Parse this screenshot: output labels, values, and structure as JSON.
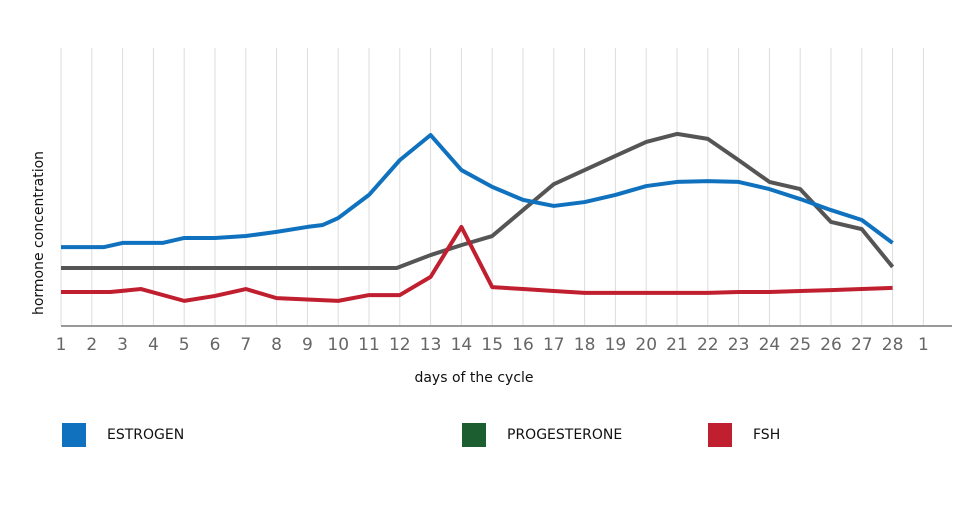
{
  "chart_data": {
    "type": "line",
    "title": "",
    "xlabel": "days of the cycle",
    "ylabel": "hormone concentration",
    "x_tick_labels": [
      "1",
      "2",
      "3",
      "4",
      "5",
      "6",
      "7",
      "8",
      "9",
      "10",
      "11",
      "12",
      "13",
      "14",
      "15",
      "16",
      "17",
      "18",
      "19",
      "20",
      "21",
      "22",
      "23",
      "24",
      "25",
      "26",
      "27",
      "28",
      "1"
    ],
    "ylim": [
      0,
      100
    ],
    "grid": "vertical",
    "legend_position": "bottom",
    "series": [
      {
        "name": "ESTROGEN",
        "color": "#1072be",
        "x": [
          1,
          2,
          2.4,
          3,
          4,
          4.3,
          5,
          6,
          7,
          8,
          9,
          9.5,
          10,
          11,
          12,
          13,
          14,
          15,
          16,
          17,
          18,
          19,
          20,
          21,
          22,
          23,
          24,
          25,
          26,
          27,
          28
        ],
        "y": [
          28.6,
          28.6,
          28.6,
          30.1,
          30.1,
          30.1,
          31.9,
          31.9,
          32.6,
          34.1,
          35.9,
          36.6,
          39.1,
          47.5,
          60.1,
          69.2,
          56.5,
          50.4,
          45.7,
          43.5,
          44.9,
          47.5,
          50.7,
          52.2,
          52.5,
          52.2,
          49.6,
          46,
          42,
          38.4,
          30.1
        ]
      },
      {
        "name": "PROGESTERONE",
        "color": "#555555",
        "legend_color": "#1c5e2f",
        "x": [
          1,
          11.9,
          13,
          14,
          15,
          16,
          17,
          18,
          19,
          20,
          21,
          22,
          23,
          24,
          25,
          26,
          27,
          28
        ],
        "y": [
          21,
          21,
          25.7,
          29.3,
          32.6,
          42,
          51.4,
          56.5,
          61.6,
          66.7,
          69.6,
          67.8,
          60.1,
          52.2,
          49.6,
          37.7,
          35.1,
          21.4
        ]
      },
      {
        "name": "FSH",
        "color": "#c01f2f",
        "x": [
          1,
          2,
          2.6,
          3.6,
          5,
          6,
          7,
          8,
          10,
          11,
          12,
          13,
          14,
          15,
          16,
          17,
          18,
          19,
          20,
          21,
          22,
          23,
          24,
          25,
          26,
          27,
          28
        ],
        "y": [
          12.3,
          12.3,
          12.3,
          13.4,
          9.1,
          10.9,
          13.4,
          10.1,
          9.1,
          11.2,
          11.2,
          17.8,
          35.9,
          14.1,
          13.4,
          12.7,
          12,
          12,
          12,
          12,
          12,
          12.3,
          12.3,
          12.7,
          13,
          13.4,
          13.8
        ]
      }
    ]
  }
}
